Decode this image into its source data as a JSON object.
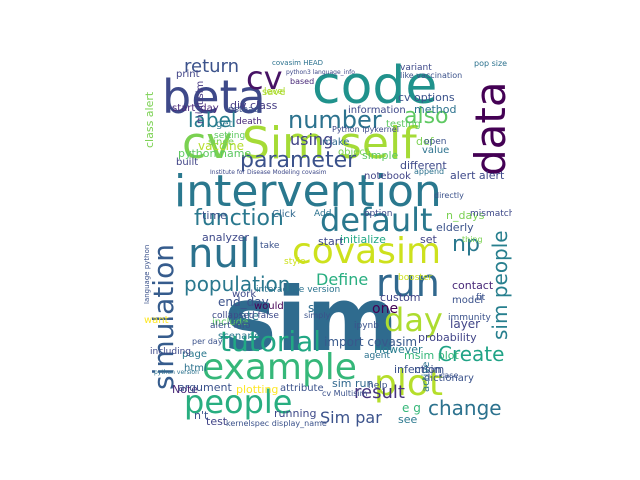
{
  "word_cloud": {
    "words": [
      {
        "key": "sim",
        "text": "sim",
        "color": "#2f6b8e"
      },
      {
        "key": "intervention",
        "text": "intervention",
        "color": "#2a788e"
      },
      {
        "key": "code",
        "text": "code",
        "color": "#20928c"
      },
      {
        "key": "beta",
        "text": "beta",
        "color": "#3e4989"
      },
      {
        "key": "sim_self",
        "text": "Sim self",
        "color": "#a5db36"
      },
      {
        "key": "cv_big",
        "text": "cv",
        "color": "#7ad151"
      },
      {
        "key": "data",
        "text": "data",
        "color": "#440154"
      },
      {
        "key": "null",
        "text": "null",
        "color": "#2c728e"
      },
      {
        "key": "covasim",
        "text": "covasim",
        "color": "#cde11d"
      },
      {
        "key": "run",
        "text": "run",
        "color": "#31688e"
      },
      {
        "key": "default",
        "text": "default",
        "color": "#2a788e"
      },
      {
        "key": "example",
        "text": "example",
        "color": "#35b779"
      },
      {
        "key": "plot",
        "text": "plot",
        "color": "#b5de2b"
      },
      {
        "key": "people",
        "text": "people",
        "color": "#28ae80"
      },
      {
        "key": "tutorial",
        "text": "tutorial",
        "color": "#22a884"
      },
      {
        "key": "day",
        "text": "day",
        "color": "#addc30"
      },
      {
        "key": "simulation",
        "text": "simulation",
        "color": "#365c8d"
      },
      {
        "key": "parameter",
        "text": "parameter",
        "color": "#3b528b"
      },
      {
        "key": "number",
        "text": "number",
        "color": "#2c728e"
      },
      {
        "key": "function",
        "text": "function",
        "color": "#2a788e"
      },
      {
        "key": "population",
        "text": "population",
        "color": "#2a788e"
      },
      {
        "key": "label",
        "text": "label",
        "color": "#287d8e"
      },
      {
        "key": "return",
        "text": "return",
        "color": "#3b528b"
      },
      {
        "key": "cv_mid",
        "text": "cv",
        "color": "#471365"
      },
      {
        "key": "also",
        "text": "also",
        "color": "#5ec962"
      },
      {
        "key": "np",
        "text": "np",
        "color": "#2a788e"
      },
      {
        "key": "sim_people",
        "text": "sim people",
        "color": "#277f8e"
      },
      {
        "key": "change",
        "text": "change",
        "color": "#2c728e"
      },
      {
        "key": "create",
        "text": "Create",
        "color": "#20a386"
      },
      {
        "key": "define",
        "text": "Define",
        "color": "#28ae80"
      },
      {
        "key": "result",
        "text": "result",
        "color": "#46327e"
      },
      {
        "key": "using",
        "text": "using",
        "color": "#414487"
      },
      {
        "key": "sim_par",
        "text": "Sim par",
        "color": "#3b528b"
      },
      {
        "key": "import_covasim",
        "text": "import covasim",
        "color": "#38598c"
      },
      {
        "key": "end_day",
        "text": "end_day",
        "color": "#3b528b"
      },
      {
        "key": "date",
        "text": "date",
        "color": "#2a788e"
      },
      {
        "key": "one",
        "text": "one",
        "color": "#440154"
      },
      {
        "key": "layer",
        "text": "layer",
        "color": "#414487"
      },
      {
        "key": "sc",
        "text": "sc",
        "color": "#2f6b8e"
      },
      {
        "key": "alert_alert",
        "text": "alert alert",
        "color": "#3e4989"
      },
      {
        "key": "n_days",
        "text": "n_days",
        "color": "#7ad151"
      },
      {
        "key": "elderly",
        "text": "elderly",
        "color": "#3b528b"
      },
      {
        "key": "vaccine",
        "text": "vaccine",
        "color": "#b5de2b"
      },
      {
        "key": "python_name",
        "text": "python name",
        "color": "#5ec962"
      },
      {
        "key": "div_class",
        "text": "div class",
        "color": "#443a83"
      },
      {
        "key": "start_day",
        "text": "start_day",
        "color": "#482878"
      },
      {
        "key": "multisim",
        "text": "multisim",
        "color": "#453781"
      },
      {
        "key": "msim",
        "text": "msim",
        "color": "#3b528b"
      },
      {
        "key": "msim_plot",
        "text": "msim plot",
        "color": "#35b779"
      },
      {
        "key": "sim_run",
        "text": "sim run",
        "color": "#31688e"
      },
      {
        "key": "running",
        "text": "running",
        "color": "#3e4989"
      },
      {
        "key": "see",
        "text": "see",
        "color": "#2a788e"
      },
      {
        "key": "cv_options",
        "text": "cv options",
        "color": "#3b528b"
      },
      {
        "key": "method",
        "text": "method",
        "color": "#2c728e"
      },
      {
        "key": "def",
        "text": "def",
        "color": "#7ad151"
      },
      {
        "key": "simple",
        "text": "simple",
        "color": "#5ec962"
      },
      {
        "key": "different",
        "text": "different",
        "color": "#3e4989"
      },
      {
        "key": "probability",
        "text": "probability",
        "color": "#414487"
      },
      {
        "key": "contact",
        "text": "contact",
        "color": "#482878"
      },
      {
        "key": "analyzer",
        "text": "analyzer",
        "color": "#3e4989"
      },
      {
        "key": "initialize",
        "text": "initialize",
        "color": "#22a884"
      },
      {
        "key": "set",
        "text": "set",
        "color": "#414487"
      },
      {
        "key": "start",
        "text": "start",
        "color": "#3e4989"
      },
      {
        "key": "time",
        "text": "time",
        "color": "#3b528b"
      },
      {
        "key": "note",
        "text": "Note",
        "color": "#482878"
      },
      {
        "key": "argument",
        "text": "argument",
        "color": "#3b528b"
      },
      {
        "key": "plotting",
        "text": "plotting",
        "color": "#fde725"
      },
      {
        "key": "however",
        "text": "However",
        "color": "#287d8e"
      },
      {
        "key": "infection",
        "text": "infection",
        "color": "#3b528b"
      },
      {
        "key": "custom",
        "text": "custom",
        "color": "#414487"
      },
      {
        "key": "scenario",
        "text": "scenario",
        "color": "#2a788e"
      },
      {
        "key": "include",
        "text": "include",
        "color": "#5ec962"
      },
      {
        "key": "html",
        "text": "html",
        "color": "#2c728e"
      },
      {
        "key": "test",
        "text": "test",
        "color": "#414487"
      },
      {
        "key": "page",
        "text": "page",
        "color": "#2a788e"
      },
      {
        "key": "e_g",
        "text": "e g",
        "color": "#35b779"
      },
      {
        "key": "nt",
        "text": "n't",
        "color": "#3b528b"
      },
      {
        "key": "active",
        "text": "active",
        "color": "#2c728e"
      },
      {
        "key": "dictionary",
        "text": "dictionary",
        "color": "#3b528b"
      },
      {
        "key": "want",
        "text": "want",
        "color": "#fde725"
      },
      {
        "key": "work",
        "text": "work",
        "color": "#3e4989"
      },
      {
        "key": "model",
        "text": "model",
        "color": "#3b528b"
      },
      {
        "key": "would",
        "text": "would",
        "color": "#440154"
      },
      {
        "key": "make",
        "text": "make",
        "color": "#31688e"
      },
      {
        "key": "get",
        "text": "get",
        "color": "#2a788e"
      },
      {
        "key": "since",
        "text": "since",
        "color": "#7ad151"
      },
      {
        "key": "notebook",
        "text": "notebook",
        "color": "#414487"
      },
      {
        "key": "value",
        "text": "value",
        "color": "#2c728e"
      },
      {
        "key": "open",
        "text": "open",
        "color": "#3b528b"
      },
      {
        "key": "save",
        "text": "save",
        "color": "#addc30"
      },
      {
        "key": "print",
        "text": "print",
        "color": "#414487"
      },
      {
        "key": "death",
        "text": "death",
        "color": "#482878"
      },
      {
        "key": "attribute",
        "text": "attribute",
        "color": "#3b528b"
      },
      {
        "key": "built",
        "text": "built",
        "color": "#414487"
      },
      {
        "key": "object",
        "text": "object",
        "color": "#7ad151"
      },
      {
        "key": "testing",
        "text": "testing",
        "color": "#5ec962"
      },
      {
        "key": "information",
        "text": "information",
        "color": "#3e4989"
      },
      {
        "key": "mismatch",
        "text": "mismatch",
        "color": "#3e4989"
      },
      {
        "key": "interactive_version",
        "text": "interactive version",
        "color": "#2c728e"
      },
      {
        "key": "class_alert",
        "text": "class alert",
        "color": "#7ad151"
      },
      {
        "key": "collapsed_false",
        "text": "collapsed false",
        "color": "#3e4989"
      },
      {
        "key": "level",
        "text": "level",
        "color": "#addc30"
      },
      {
        "key": "setting",
        "text": "setting",
        "color": "#5ec962"
      },
      {
        "key": "instead",
        "text": "instead",
        "color": "#3b528b"
      },
      {
        "key": "option",
        "text": "option",
        "color": "#3e4989"
      },
      {
        "key": "booster",
        "text": "booster",
        "color": "#cde11d"
      },
      {
        "key": "immunity",
        "text": "immunity",
        "color": "#3b528b"
      },
      {
        "key": "click",
        "text": "Click",
        "color": "#31688e"
      },
      {
        "key": "take",
        "text": "take",
        "color": "#3b528b"
      },
      {
        "key": "style",
        "text": "style",
        "color": "#cde11d"
      },
      {
        "key": "add",
        "text": "Add",
        "color": "#2c728e"
      },
      {
        "key": "help",
        "text": "help",
        "color": "#3b528b"
      },
      {
        "key": "agent",
        "text": "agent",
        "color": "#2c728e"
      },
      {
        "key": "based",
        "text": "based",
        "color": "#482878"
      },
      {
        "key": "variant",
        "text": "variant",
        "color": "#3e4989"
      },
      {
        "key": "pop_size",
        "text": "pop size",
        "color": "#2c728e"
      },
      {
        "key": "ipynb",
        "text": "ipynb",
        "color": "#3b528b"
      },
      {
        "key": "case",
        "text": "case",
        "color": "#3b528b"
      },
      {
        "key": "fit",
        "text": "fit",
        "color": "#3b528b"
      },
      {
        "key": "directly",
        "text": "directly",
        "color": "#3b528b"
      },
      {
        "key": "thing",
        "text": "thing",
        "color": "#7ad151"
      },
      {
        "key": "alert_info",
        "text": "alert info",
        "color": "#3b528b"
      },
      {
        "key": "including",
        "text": "including",
        "color": "#3e4989"
      },
      {
        "key": "per_day",
        "text": "per day",
        "color": "#3b528b"
      },
      {
        "key": "append",
        "text": "append",
        "color": "#2c728e"
      },
      {
        "key": "cv_multisim",
        "text": "cv Multisim",
        "color": "#3b528b"
      },
      {
        "key": "kernelspec_display_name",
        "text": "kernelspec display_name",
        "color": "#3b528b"
      },
      {
        "key": "python_ipykernel",
        "text": "Python ipykernel",
        "color": "#3e4989"
      },
      {
        "key": "covasim_head",
        "text": "covasim HEAD",
        "color": "#2c728e"
      },
      {
        "key": "like_vaccination",
        "text": "like vaccination",
        "color": "#3b528b"
      },
      {
        "key": "simply",
        "text": "simply",
        "color": "#3b528b"
      },
      {
        "key": "python3_language_info",
        "text": "python3 language_info",
        "color": "#3e4989"
      },
      {
        "key": "institute_disease_modeling",
        "text": "Institute for Disease Modeling covasim",
        "color": "#3e4989"
      },
      {
        "key": "language_python",
        "text": "language python",
        "color": "#3b528b"
      },
      {
        "key": "python_version",
        "text": "python version",
        "color": "#2c728e"
      }
    ]
  }
}
